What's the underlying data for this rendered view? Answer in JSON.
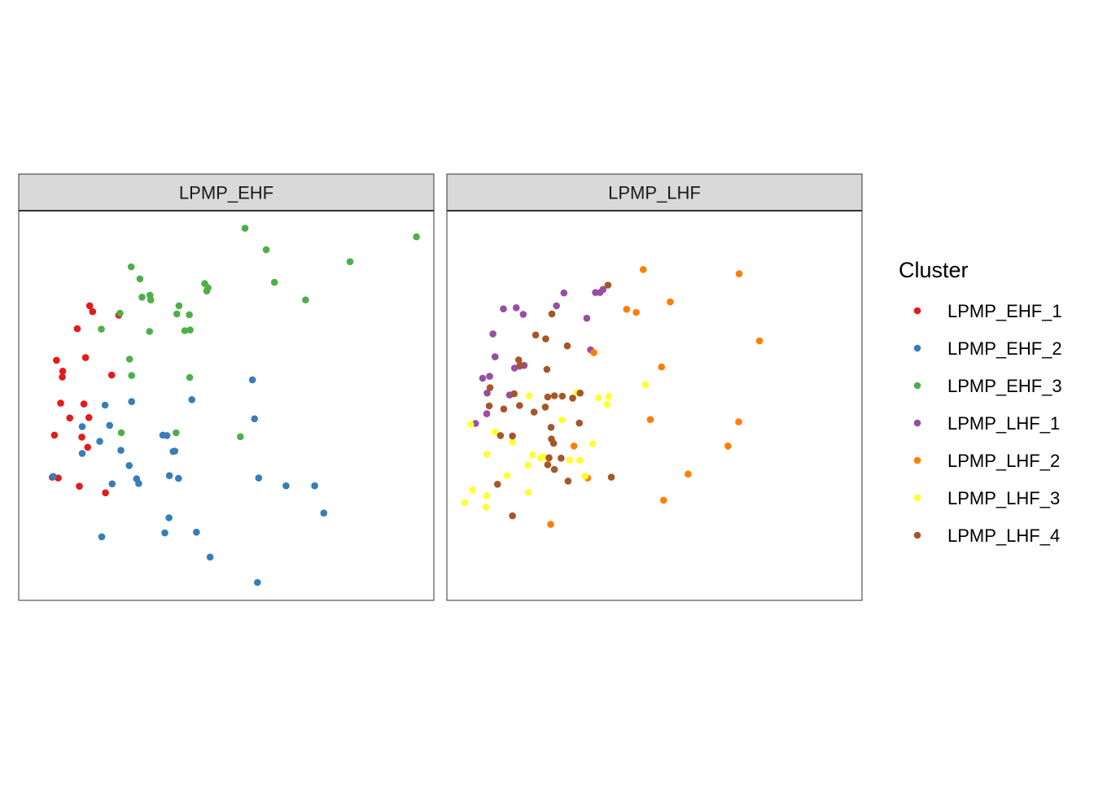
{
  "chart_data": {
    "type": "scatter",
    "title": "",
    "xlabel": "",
    "ylabel": "",
    "grid": false,
    "facets": [
      "LPMP_EHF",
      "LPMP_LHF"
    ],
    "legend": {
      "title": "Cluster",
      "placement": "right",
      "entries": [
        {
          "label": "LPMP_EHF_1",
          "color": "#E41A1C"
        },
        {
          "label": "LPMP_EHF_2",
          "color": "#377EB8"
        },
        {
          "label": "LPMP_EHF_3",
          "color": "#4DAF4A"
        },
        {
          "label": "LPMP_LHF_1",
          "color": "#984EA3"
        },
        {
          "label": "LPMP_LHF_2",
          "color": "#FF7F00"
        },
        {
          "label": "LPMP_LHF_3",
          "color": "#FFFF33"
        },
        {
          "label": "LPMP_LHF_4",
          "color": "#A65628"
        }
      ]
    },
    "xlim": [
      0,
      100
    ],
    "ylim": [
      0,
      100
    ],
    "series": [
      {
        "name": "LPMP_EHF_1",
        "facet": "LPMP_EHF",
        "color": "#E41A1C",
        "points": [
          [
            17.1,
            75.6
          ],
          [
            17.8,
            74.1
          ],
          [
            14.1,
            69.7
          ],
          [
            9.1,
            61.6
          ],
          [
            10.6,
            58.8
          ],
          [
            10.5,
            57.3
          ],
          [
            16.1,
            62.3
          ],
          [
            22.4,
            57.8
          ],
          [
            24.1,
            73.2
          ],
          [
            10.1,
            50.6
          ],
          [
            15.7,
            50.4
          ],
          [
            12.3,
            46.8
          ],
          [
            16.9,
            46.9
          ],
          [
            8.6,
            42.4
          ],
          [
            15.2,
            41.9
          ],
          [
            16.6,
            39.3
          ],
          [
            8.1,
            31.6
          ],
          [
            9.5,
            31.4
          ],
          [
            14.6,
            29.3
          ],
          [
            20.9,
            27.6
          ]
        ]
      },
      {
        "name": "LPMP_EHF_2",
        "facet": "LPMP_EHF",
        "color": "#377EB8",
        "points": [
          [
            56.3,
            56.6
          ],
          [
            20.8,
            50.1
          ],
          [
            27.2,
            51.0
          ],
          [
            41.7,
            51.5
          ],
          [
            56.8,
            46.6
          ],
          [
            15.3,
            44.6
          ],
          [
            21.9,
            44.9
          ],
          [
            19.5,
            40.8
          ],
          [
            34.7,
            42.4
          ],
          [
            35.7,
            42.3
          ],
          [
            15.3,
            37.7
          ],
          [
            24.6,
            38.5
          ],
          [
            37.2,
            38.2
          ],
          [
            37.6,
            38.3
          ],
          [
            26.6,
            34.6
          ],
          [
            8.3,
            31.8
          ],
          [
            22.5,
            29.9
          ],
          [
            28.4,
            31.2
          ],
          [
            28.9,
            30.0
          ],
          [
            36.3,
            32.0
          ],
          [
            38.5,
            31.3
          ],
          [
            57.8,
            31.4
          ],
          [
            64.4,
            29.4
          ],
          [
            71.3,
            29.4
          ],
          [
            73.5,
            22.4
          ],
          [
            36.2,
            21.2
          ],
          [
            20.0,
            16.3
          ],
          [
            35.2,
            17.3
          ],
          [
            42.8,
            17.5
          ],
          [
            46.1,
            11.1
          ],
          [
            57.5,
            4.6
          ]
        ]
      },
      {
        "name": "LPMP_EHF_3",
        "facet": "LPMP_EHF",
        "color": "#4DAF4A",
        "points": [
          [
            54.5,
            95.5
          ],
          [
            59.6,
            90.0
          ],
          [
            95.8,
            93.3
          ],
          [
            79.8,
            86.9
          ],
          [
            27.1,
            85.6
          ],
          [
            29.2,
            82.5
          ],
          [
            44.8,
            81.3
          ],
          [
            45.6,
            80.2
          ],
          [
            45.3,
            79.4
          ],
          [
            61.6,
            81.6
          ],
          [
            29.7,
            77.8
          ],
          [
            31.8,
            77.1
          ],
          [
            31.6,
            78.3
          ],
          [
            38.6,
            75.6
          ],
          [
            38.1,
            73.5
          ],
          [
            41.1,
            73.3
          ],
          [
            69.1,
            77.1
          ],
          [
            24.4,
            73.7
          ],
          [
            19.9,
            69.6
          ],
          [
            31.5,
            69.0
          ],
          [
            40.0,
            69.2
          ],
          [
            41.3,
            69.4
          ],
          [
            26.7,
            61.9
          ],
          [
            27.2,
            57.7
          ],
          [
            41.2,
            57.2
          ],
          [
            37.9,
            43.0
          ],
          [
            24.7,
            43.0
          ],
          [
            53.4,
            42.0
          ]
        ]
      },
      {
        "name": "LPMP_LHF_1",
        "facet": "LPMP_LHF",
        "color": "#984EA3",
        "points": [
          [
            28.2,
            78.9
          ],
          [
            35.8,
            79.0
          ],
          [
            36.9,
            79.0
          ],
          [
            37.6,
            79.8
          ],
          [
            16.7,
            75.1
          ],
          [
            18.4,
            73.4
          ],
          [
            13.6,
            74.8
          ],
          [
            26.4,
            75.6
          ],
          [
            33.7,
            72.4
          ],
          [
            11.1,
            68.4
          ],
          [
            34.6,
            64.3
          ],
          [
            11.6,
            62.5
          ],
          [
            16.3,
            59.6
          ],
          [
            17.5,
            60.1
          ],
          [
            18.6,
            60.3
          ],
          [
            8.6,
            57.0
          ],
          [
            10.3,
            57.5
          ],
          [
            9.7,
            53.2
          ],
          [
            15.1,
            52.7
          ],
          [
            9.6,
            47.9
          ],
          [
            6.9,
            45.4
          ]
        ]
      },
      {
        "name": "LPMP_LHF_2",
        "facet": "LPMP_LHF",
        "color": "#FF7F00",
        "points": [
          [
            47.3,
            84.9
          ],
          [
            70.4,
            83.8
          ],
          [
            53.8,
            76.6
          ],
          [
            43.3,
            74.7
          ],
          [
            45.6,
            73.9
          ],
          [
            75.3,
            66.6
          ],
          [
            35.4,
            63.6
          ],
          [
            51.7,
            59.9
          ],
          [
            49.0,
            46.4
          ],
          [
            70.3,
            45.8
          ],
          [
            30.6,
            39.6
          ],
          [
            67.7,
            39.6
          ],
          [
            58.1,
            32.4
          ],
          [
            33.9,
            31.4
          ],
          [
            52.2,
            25.7
          ],
          [
            25.0,
            19.5
          ]
        ]
      },
      {
        "name": "LPMP_LHF_3",
        "facet": "LPMP_LHF",
        "color": "#FFFF33",
        "points": [
          [
            47.8,
            55.3
          ],
          [
            19.8,
            52.5
          ],
          [
            31.4,
            53.3
          ],
          [
            39.0,
            52.3
          ],
          [
            36.5,
            52.0
          ],
          [
            38.6,
            50.3
          ],
          [
            5.7,
            45.2
          ],
          [
            11.6,
            43.2
          ],
          [
            27.7,
            46.3
          ],
          [
            15.8,
            40.6
          ],
          [
            35.1,
            40.2
          ],
          [
            9.6,
            37.5
          ],
          [
            20.6,
            37.3
          ],
          [
            23.1,
            36.8
          ],
          [
            22.6,
            36.5
          ],
          [
            24.5,
            36.3
          ],
          [
            29.6,
            36.0
          ],
          [
            32.0,
            35.9
          ],
          [
            19.5,
            34.7
          ],
          [
            14.5,
            32.0
          ],
          [
            33.3,
            31.9
          ],
          [
            6.2,
            28.3
          ],
          [
            9.6,
            26.8
          ],
          [
            19.6,
            27.7
          ],
          [
            4.3,
            25.1
          ],
          [
            9.4,
            23.9
          ]
        ]
      },
      {
        "name": "LPMP_LHF_4",
        "facet": "LPMP_LHF",
        "color": "#A65628",
        "points": [
          [
            38.8,
            80.9
          ],
          [
            25.3,
            73.5
          ],
          [
            21.4,
            68.1
          ],
          [
            23.8,
            67.1
          ],
          [
            29.0,
            65.3
          ],
          [
            17.3,
            61.7
          ],
          [
            17.8,
            60.3
          ],
          [
            24.1,
            59.3
          ],
          [
            10.4,
            54.6
          ],
          [
            16.2,
            53.0
          ],
          [
            24.3,
            52.2
          ],
          [
            25.9,
            52.5
          ],
          [
            27.8,
            52.4
          ],
          [
            30.3,
            51.9
          ],
          [
            32.1,
            53.2
          ],
          [
            23.7,
            49.6
          ],
          [
            10.2,
            49.9
          ],
          [
            13.7,
            49.1
          ],
          [
            17.5,
            50.0
          ],
          [
            21.0,
            48.3
          ],
          [
            31.9,
            45.5
          ],
          [
            25.1,
            44.4
          ],
          [
            12.9,
            42.3
          ],
          [
            15.8,
            42.2
          ],
          [
            25.2,
            41.4
          ],
          [
            25.7,
            40.3
          ],
          [
            27.5,
            36.5
          ],
          [
            24.6,
            36.6
          ],
          [
            24.3,
            34.8
          ],
          [
            25.9,
            33.6
          ],
          [
            29.2,
            30.6
          ],
          [
            12.2,
            29.8
          ],
          [
            39.6,
            31.6
          ],
          [
            15.8,
            21.7
          ]
        ]
      }
    ]
  }
}
